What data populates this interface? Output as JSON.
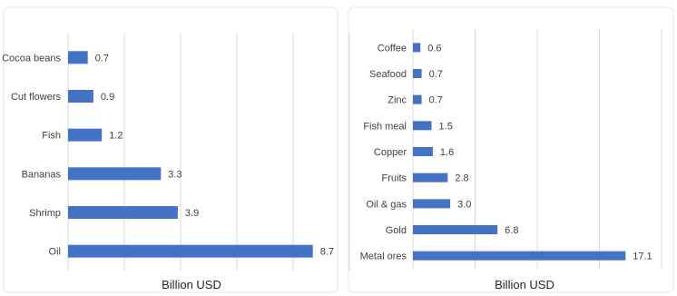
{
  "chart_data": [
    {
      "type": "bar",
      "orientation": "horizontal",
      "categories": [
        "Cocoa beans",
        "Cut flowers",
        "Fish",
        "Bananas",
        "Shrimp",
        "Oil"
      ],
      "values": [
        0.7,
        0.9,
        1.2,
        3.3,
        3.9,
        8.7
      ],
      "data_labels": [
        "0.7",
        "0.9",
        "1.2",
        "3.3",
        "3.9",
        "8.7"
      ],
      "xlabel": "Billion USD",
      "xlim": [
        0,
        10
      ],
      "grid": true,
      "color": "#4472C4"
    },
    {
      "type": "bar",
      "orientation": "horizontal",
      "categories": [
        "Coffee",
        "Seafood",
        "Zinc",
        "Fish meal",
        "Copper",
        "Fruits",
        "Oil & gas",
        "Gold",
        "Metal ores"
      ],
      "values": [
        0.6,
        0.7,
        0.7,
        1.5,
        1.6,
        2.8,
        3.0,
        6.8,
        17.1
      ],
      "data_labels": [
        "0.6",
        "0.7",
        "0.7",
        "1.5",
        "1.6",
        "2.8",
        "3.0",
        "6.8",
        "17.1"
      ],
      "xlabel": "Billion USD",
      "xlim": [
        0,
        20
      ],
      "grid": true,
      "color": "#4472C4"
    }
  ]
}
